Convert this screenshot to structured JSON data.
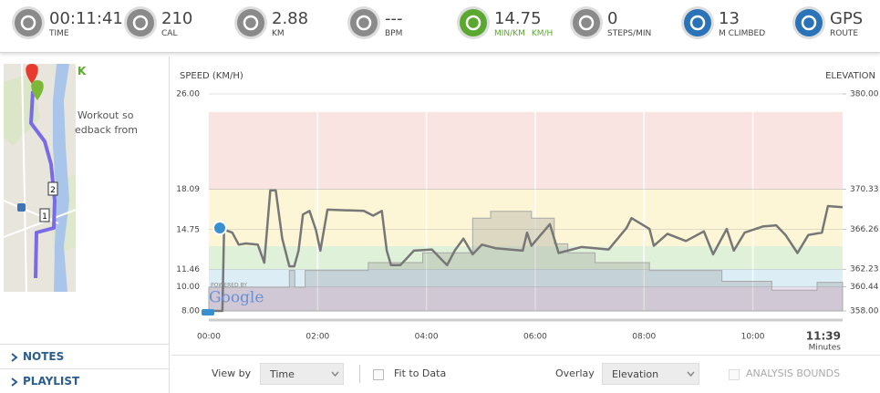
{
  "header": {
    "stats": [
      {
        "value": "00:11:41",
        "label": "TIME"
      },
      {
        "value": "210",
        "label": "CAL"
      },
      {
        "value": "2.88",
        "label": "KM"
      },
      {
        "value": "---",
        "label": "BPM"
      },
      {
        "value": "14.75",
        "label": "MIN/KM",
        "label2": "KM/H"
      },
      {
        "value": "0",
        "label": "STEPS/MIN"
      },
      {
        "value": "13",
        "label": "M CLIMBED"
      },
      {
        "value": "GPS",
        "label": "ROUTE"
      }
    ]
  },
  "sidebar": {
    "heading": "K",
    "text": [
      "Workout so",
      "edback from"
    ],
    "map_markers": [
      "2",
      "1"
    ],
    "links": [
      "NOTES",
      "PLAYLIST"
    ]
  },
  "attribution": {
    "powered_by": "POWERED BY",
    "logo": "Google"
  },
  "controls": {
    "view_by_label": "View by",
    "view_by": "Time",
    "fit_to_data": "Fit to Data",
    "overlay_label": "Overlay",
    "overlay": "Elevation",
    "analysis_bounds": "ANALYSIS BOUNDS"
  },
  "chart_data": {
    "type": "line",
    "y_label": "SPEED (KM/H)",
    "y2_label": "ELEVATION",
    "x_label": "Minutes",
    "xlim": [
      0,
      11.65
    ],
    "xticks": [
      {
        "value": 0,
        "label": "00:00"
      },
      {
        "value": 2,
        "label": "02:00"
      },
      {
        "value": 4,
        "label": "04:00"
      },
      {
        "value": 6,
        "label": "06:00"
      },
      {
        "value": 8,
        "label": "08:00"
      },
      {
        "value": 10,
        "label": "10:00"
      },
      {
        "value": 11.65,
        "label": "11:39"
      }
    ],
    "ylim": [
      8,
      26
    ],
    "yticks": [
      {
        "value": 8,
        "label": "8.00"
      },
      {
        "value": 10,
        "label": "10.00"
      },
      {
        "value": 11.46,
        "label": "11.46"
      },
      {
        "value": 14.75,
        "label": "14.75"
      },
      {
        "value": 18.09,
        "label": "18.09"
      },
      {
        "value": 26,
        "label": "26.00"
      }
    ],
    "y2lim": [
      358,
      380
    ],
    "y2ticks": [
      {
        "value": 358,
        "label": "358.00"
      },
      {
        "value": 360.44,
        "label": "360.44"
      },
      {
        "value": 362.23,
        "label": "362.23"
      },
      {
        "value": 366.26,
        "label": "366.26"
      },
      {
        "value": 370.33,
        "label": "370.33"
      },
      {
        "value": 380,
        "label": "380.00"
      }
    ],
    "zones": [
      {
        "from": 8,
        "to": 10,
        "color": "#ebe0f0"
      },
      {
        "from": 10,
        "to": 11.46,
        "color": "#dcedf6"
      },
      {
        "from": 11.46,
        "to": 13.38,
        "color": "#e0f1d9"
      },
      {
        "from": 13.38,
        "to": 18.09,
        "color": "#fcf6d6"
      },
      {
        "from": 18.09,
        "to": 24.5,
        "color": "#f9e4e2"
      }
    ],
    "series": [
      {
        "axis": "y2",
        "color": "#a8a8a8",
        "fill": "rgba(140,140,140,0.28)",
        "x": [
          0,
          1.48,
          1.48,
          1.58,
          1.58,
          1.77,
          1.77,
          2.93,
          2.93,
          3.93,
          3.93,
          4.85,
          4.85,
          5.18,
          5.18,
          5.93,
          5.93,
          6.35,
          6.35,
          6.6,
          6.6,
          7.1,
          7.1,
          8.1,
          8.1,
          9.43,
          9.43,
          10.35,
          10.35,
          11.18,
          11.18,
          11.65
        ],
        "values": [
          360.4,
          360.4,
          362.1,
          362.1,
          360.4,
          360.4,
          362.1,
          362.1,
          362.9,
          362.9,
          363.9,
          363.9,
          367.4,
          367.4,
          368.1,
          368.1,
          367.4,
          367.4,
          364.8,
          364.8,
          363.9,
          363.9,
          362.9,
          362.9,
          362.1,
          362.1,
          361.0,
          361.0,
          360.1,
          360.1,
          360.9,
          360.9
        ]
      },
      {
        "color": "#777777",
        "x": [
          0,
          0.25,
          0.28,
          0.43,
          0.55,
          0.68,
          0.9,
          1.02,
          1.13,
          1.23,
          1.35,
          1.48,
          1.57,
          1.65,
          1.73,
          1.85,
          1.97,
          2.05,
          2.18,
          2.85,
          3.02,
          3.18,
          3.27,
          3.35,
          3.52,
          3.77,
          4.1,
          4.27,
          4.38,
          4.52,
          4.68,
          4.85,
          5.02,
          5.27,
          5.77,
          5.85,
          5.93,
          6.27,
          6.43,
          6.85,
          7.35,
          7.68,
          7.77,
          8.1,
          8.18,
          8.43,
          8.77,
          9.1,
          9.27,
          9.52,
          9.65,
          9.85,
          10.18,
          10.43,
          10.6,
          10.82,
          11.02,
          11.27,
          11.38,
          11.65
        ],
        "values": [
          8.0,
          8.0,
          14.75,
          14.5,
          13.5,
          13.6,
          13.5,
          12.0,
          18.0,
          18.0,
          14.0,
          11.7,
          11.7,
          13.0,
          16.0,
          16.3,
          14.7,
          13.0,
          16.4,
          16.3,
          15.9,
          16.3,
          13.0,
          11.8,
          11.8,
          13.0,
          13.1,
          12.3,
          11.8,
          13.0,
          14.0,
          12.7,
          13.5,
          13.2,
          13.0,
          14.5,
          13.4,
          15.2,
          12.8,
          13.3,
          13.1,
          14.9,
          15.7,
          14.8,
          13.4,
          14.4,
          13.8,
          14.6,
          12.7,
          14.8,
          13.0,
          14.5,
          15.0,
          15.1,
          14.3,
          12.8,
          14.3,
          14.5,
          16.7,
          16.6
        ]
      }
    ]
  }
}
